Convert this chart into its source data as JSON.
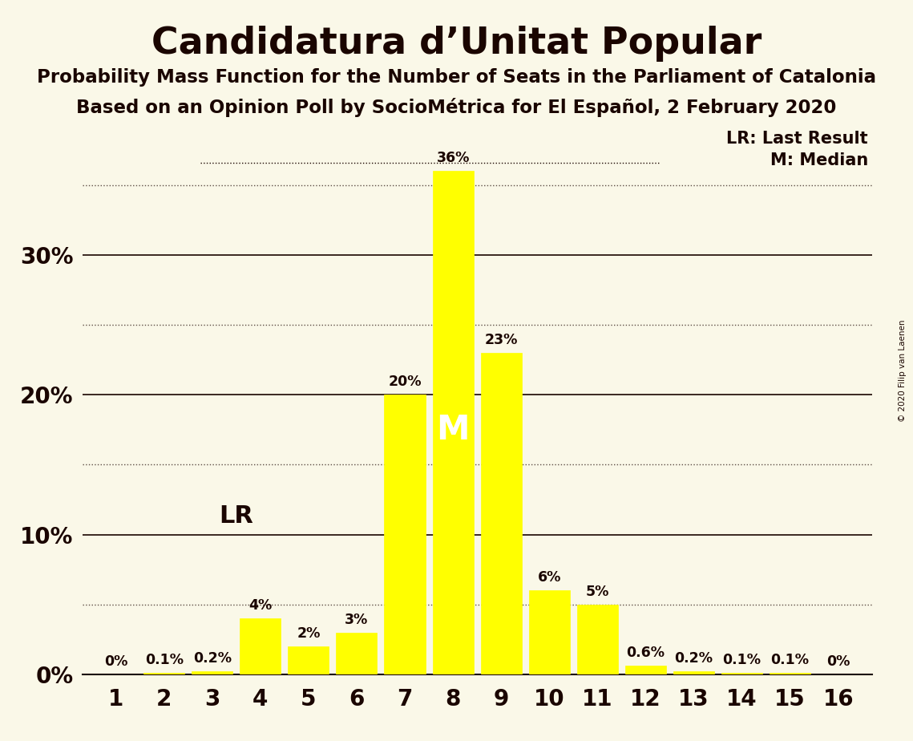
{
  "title": "Candidatura d’Unitat Popular",
  "subtitle1": "Probability Mass Function for the Number of Seats in the Parliament of Catalonia",
  "subtitle2": "Based on an Opinion Poll by SocioMétrica for El Español, 2 February 2020",
  "copyright": "© 2020 Filip van Laenen",
  "seats": [
    1,
    2,
    3,
    4,
    5,
    6,
    7,
    8,
    9,
    10,
    11,
    12,
    13,
    14,
    15,
    16
  ],
  "probabilities": [
    0.0,
    0.001,
    0.002,
    0.04,
    0.02,
    0.03,
    0.2,
    0.36,
    0.23,
    0.06,
    0.05,
    0.006,
    0.002,
    0.001,
    0.001,
    0.0
  ],
  "labels": [
    "0%",
    "0.1%",
    "0.2%",
    "4%",
    "2%",
    "3%",
    "20%",
    "36%",
    "23%",
    "6%",
    "5%",
    "0.6%",
    "0.2%",
    "0.1%",
    "0.1%",
    "0%"
  ],
  "bar_color": "#FFFF00",
  "background_color": "#FAF8E8",
  "text_color": "#1A0500",
  "last_result_seat": 4,
  "median_seat": 8,
  "ylim": [
    0,
    0.395
  ],
  "solid_yticks": [
    0.0,
    0.1,
    0.2,
    0.3
  ],
  "solid_ytick_labels": [
    "0%",
    "10%",
    "20%",
    "30%"
  ],
  "dotted_yticks": [
    0.05,
    0.15,
    0.25,
    0.35
  ],
  "legend_lr": "LR: Last Result",
  "legend_m": "M: Median"
}
